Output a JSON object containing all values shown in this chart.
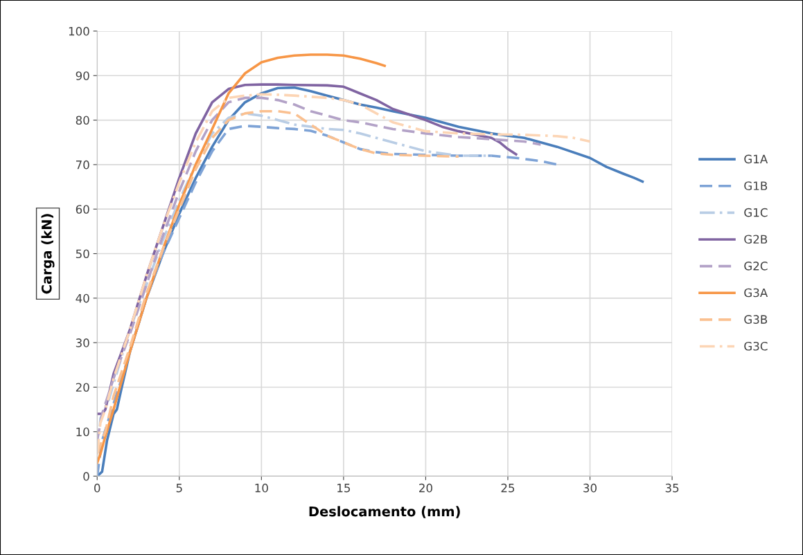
{
  "chart_data": {
    "type": "line",
    "xlabel": "Deslocamento (mm)",
    "ylabel": "Carga (kN)",
    "xlim": [
      0,
      35
    ],
    "xticks": [
      0,
      5,
      10,
      15,
      20,
      25,
      30,
      35
    ],
    "ylim": [
      0,
      100
    ],
    "yticks": [
      0,
      10,
      20,
      30,
      40,
      50,
      60,
      70,
      80,
      90,
      100
    ],
    "grid": true,
    "legend": "right",
    "series": [
      {
        "name": "G1A",
        "color": "#4a7ebb",
        "line_style": "solid",
        "x": [
          0,
          0.3,
          0.6,
          1,
          1.2,
          1.5,
          2,
          3,
          4,
          5,
          6,
          7,
          8,
          9,
          10,
          11,
          12,
          13,
          14,
          15,
          16,
          17,
          18,
          20,
          22,
          24,
          26,
          28,
          30,
          31,
          32,
          32.7,
          33.2
        ],
        "values": [
          0,
          1,
          8,
          14,
          15,
          20,
          28,
          40,
          50,
          59,
          67,
          74,
          80,
          84,
          86,
          87.2,
          87.3,
          86.5,
          85.5,
          84.5,
          83.5,
          82.8,
          82,
          80.5,
          78.5,
          77,
          76,
          74,
          71.5,
          69.5,
          68,
          67,
          66.2
        ]
      },
      {
        "name": "G1B",
        "color": "#7ea3d6",
        "line_style": "dashed",
        "x": [
          0,
          0.3,
          0.8,
          1.5,
          2,
          3,
          4,
          5,
          6,
          7,
          8,
          9,
          10,
          11,
          12,
          13,
          14,
          15,
          16,
          17,
          18,
          20,
          22,
          24,
          25.5,
          27,
          28
        ],
        "values": [
          0,
          8,
          14,
          22,
          28,
          40,
          50,
          58,
          66,
          73,
          78,
          78.7,
          78.5,
          78.2,
          78,
          77.6,
          76.5,
          75,
          73.5,
          72.8,
          72.4,
          72.2,
          72,
          72,
          71.5,
          70.8,
          70
        ]
      },
      {
        "name": "G1C",
        "color": "#b9cde5",
        "line_style": "dashdot",
        "x": [
          0,
          0.2,
          0.7,
          1.5,
          2,
          3,
          4,
          5,
          6,
          7,
          8,
          9,
          10,
          11,
          12,
          14,
          15,
          16,
          18,
          20,
          22,
          24
        ],
        "values": [
          5,
          13,
          17,
          27,
          33,
          43,
          53,
          62,
          70,
          77,
          80.5,
          81.5,
          81,
          80,
          79,
          78,
          77.8,
          77,
          75,
          73,
          72,
          72
        ]
      },
      {
        "name": "G2B",
        "color": "#8064a2",
        "line_style": "solid",
        "x": [
          0,
          0.3,
          0.5,
          1,
          2,
          3,
          4,
          5,
          6,
          7,
          8,
          9,
          10,
          11,
          12,
          14,
          15,
          16,
          17,
          18,
          20,
          21,
          22,
          24,
          24.5,
          25,
          25.5
        ],
        "values": [
          14,
          14,
          15,
          23,
          33,
          45,
          56,
          67,
          77,
          84,
          87,
          87.9,
          88,
          88,
          87.9,
          87.8,
          87.5,
          86,
          84.5,
          82.5,
          80,
          78.5,
          77.5,
          76,
          75,
          73.5,
          72.3
        ]
      },
      {
        "name": "G2C",
        "color": "#b3a2c7",
        "line_style": "dashed",
        "x": [
          0,
          0.3,
          1,
          2,
          3,
          4,
          5,
          6,
          7,
          8,
          9,
          10,
          11,
          12,
          13,
          14,
          15,
          16,
          18,
          20,
          22,
          24,
          26,
          27
        ],
        "values": [
          8,
          14,
          22,
          32,
          43,
          54,
          64,
          73,
          80,
          84,
          85,
          85,
          84.5,
          83.5,
          82,
          81,
          80,
          79.5,
          78,
          77,
          76.2,
          75.7,
          75.2,
          74.5
        ]
      },
      {
        "name": "G3A",
        "color": "#f79646",
        "line_style": "solid",
        "x": [
          0,
          0.2,
          0.5,
          1,
          2,
          3,
          4,
          5,
          6,
          7,
          8,
          9,
          10,
          11,
          12,
          13,
          14,
          15,
          16,
          17,
          17.5
        ],
        "values": [
          3,
          5,
          9,
          15,
          28,
          40,
          51,
          61,
          70,
          78,
          86,
          90.5,
          93,
          94,
          94.5,
          94.7,
          94.7,
          94.5,
          93.8,
          92.8,
          92.2
        ]
      },
      {
        "name": "G3B",
        "color": "#fac090",
        "line_style": "dashed",
        "x": [
          0,
          0.5,
          1,
          2,
          3,
          4,
          5,
          6,
          7,
          8,
          9,
          10,
          11,
          12,
          13,
          14,
          15,
          16,
          17,
          18,
          20,
          22
        ],
        "values": [
          5,
          10,
          18,
          29,
          41,
          51,
          60,
          69,
          76,
          80,
          81.5,
          82,
          82,
          81.5,
          79,
          76.5,
          75,
          73.5,
          72.5,
          72.2,
          72,
          71.8
        ]
      },
      {
        "name": "G3C",
        "color": "#fcd5b5",
        "line_style": "dashdot",
        "x": [
          0,
          0.2,
          0.5,
          1,
          2,
          3,
          4,
          5,
          6,
          7,
          8,
          9,
          10,
          11,
          12,
          14,
          15,
          16,
          17,
          18,
          20,
          22,
          24,
          26,
          28,
          29,
          30
        ],
        "values": [
          5,
          12,
          15,
          22,
          33,
          45,
          56,
          66,
          75,
          82,
          85,
          85.5,
          85.8,
          85.7,
          85.5,
          85,
          84.5,
          83.5,
          81.5,
          79.5,
          77.5,
          77,
          76.8,
          76.7,
          76.4,
          76,
          75.2
        ]
      }
    ]
  }
}
